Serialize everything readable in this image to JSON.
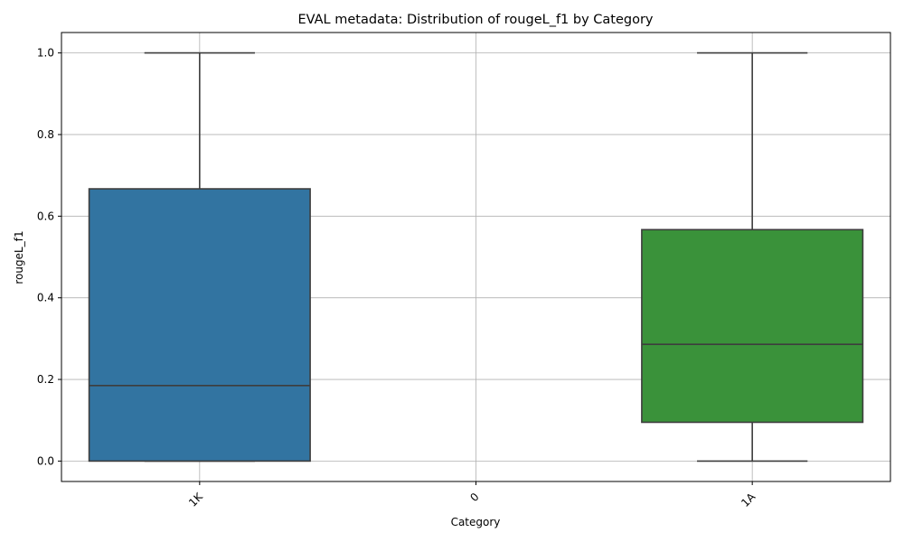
{
  "chart_data": {
    "type": "box",
    "title": "EVAL metadata: Distribution of rougeL_f1 by Category",
    "xlabel": "Category",
    "ylabel": "rougeL_f1",
    "ylim": [
      -0.05,
      1.05
    ],
    "yticks": [
      0.0,
      0.2,
      0.4,
      0.6,
      0.8,
      1.0
    ],
    "ytick_labels": [
      "0.0",
      "0.2",
      "0.4",
      "0.6",
      "0.8",
      "1.0"
    ],
    "grid": true,
    "categories": [
      "1K",
      "0",
      "1A"
    ],
    "boxes": [
      {
        "category": "1K",
        "min": 0.0,
        "q1": 0.0,
        "median": 0.185,
        "q3": 0.667,
        "max": 1.0,
        "color": "#3274a1"
      },
      {
        "category": "0",
        "empty": true
      },
      {
        "category": "1A",
        "min": 0.0,
        "q1": 0.095,
        "median": 0.286,
        "q3": 0.567,
        "max": 1.0,
        "color": "#3a923a"
      }
    ]
  }
}
